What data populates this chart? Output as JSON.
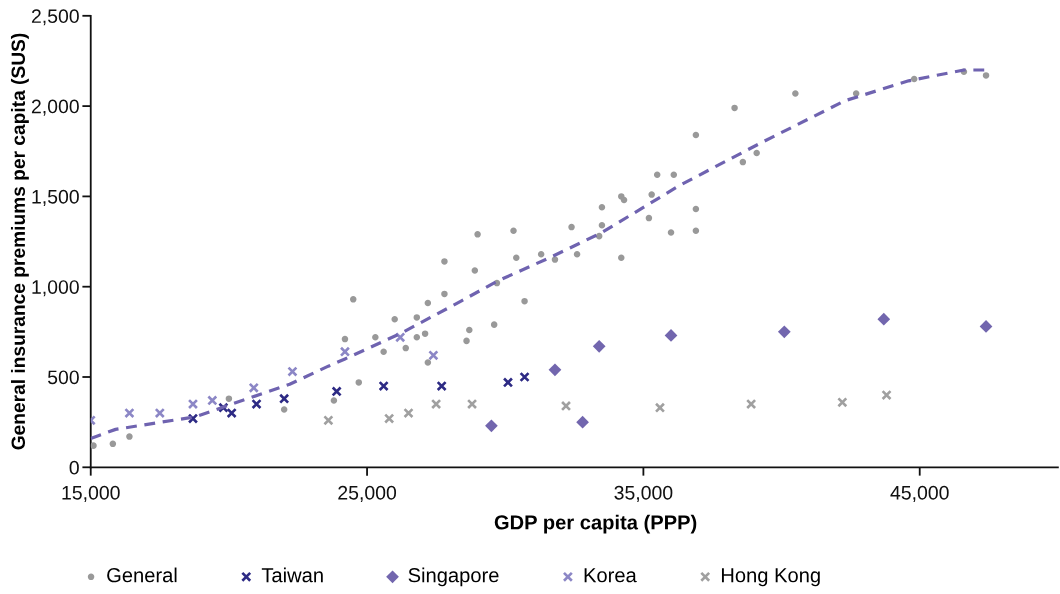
{
  "chart_data": {
    "type": "scatter",
    "xlabel": "GDP per capita (PPP)",
    "ylabel": "General insurance premiums per capita (SUS)",
    "xlim": [
      15000,
      50000
    ],
    "xticks": [
      {
        "value": 15000,
        "label": "15,000"
      },
      {
        "value": 25000,
        "label": "25,000"
      },
      {
        "value": 35000,
        "label": "35,000"
      },
      {
        "value": 45000,
        "label": "45,000"
      }
    ],
    "ylim": [
      0,
      2500
    ],
    "yticks": [
      0,
      {
        "value": 500,
        "label": "500"
      },
      {
        "value": 1000,
        "label": "1,000"
      },
      {
        "value": 1500,
        "label": "1,500"
      },
      {
        "value": 2000,
        "label": "2,000"
      },
      {
        "value": 2500,
        "label": "2,500"
      }
    ],
    "legend": "bottom",
    "series": [
      {
        "name": "General",
        "color": "#999999",
        "marker": "circle",
        "x": [
          15100,
          15800,
          16400,
          20000,
          22000,
          23800,
          24200,
          24500,
          24700,
          25300,
          25600,
          26000,
          26400,
          26800,
          26800,
          27100,
          27200,
          27200,
          27800,
          27800,
          28600,
          28700,
          28900,
          29000,
          29600,
          29700,
          30300,
          30400,
          30700,
          31300,
          31800,
          32400,
          32600,
          33400,
          33500,
          33500,
          34200,
          34200,
          34300,
          35200,
          35300,
          35500,
          36000,
          36100,
          36900,
          36900,
          36900,
          38300,
          38600,
          39100,
          40500,
          42700,
          44800,
          46600,
          47400
        ],
        "values": [
          120,
          130,
          170,
          380,
          320,
          370,
          710,
          930,
          470,
          720,
          640,
          820,
          660,
          720,
          830,
          740,
          580,
          910,
          960,
          1140,
          700,
          760,
          1090,
          1290,
          790,
          1020,
          1310,
          1160,
          920,
          1180,
          1150,
          1330,
          1180,
          1280,
          1440,
          1340,
          1500,
          1160,
          1480,
          1380,
          1510,
          1620,
          1300,
          1620,
          1430,
          1310,
          1840,
          1990,
          1690,
          1740,
          2070,
          2070,
          2150,
          2190,
          2170
        ]
      },
      {
        "name": "Taiwan",
        "color": "#2d2a84",
        "marker": "cross",
        "x": [
          18700,
          19800,
          20100,
          21000,
          22000,
          23900,
          25600,
          27700,
          30100,
          30700
        ],
        "values": [
          270,
          330,
          300,
          350,
          380,
          420,
          450,
          450,
          470,
          500
        ]
      },
      {
        "name": "Singapore",
        "color": "#7266ae",
        "marker": "diamond",
        "x": [
          29500,
          31800,
          32800,
          33400,
          36000,
          40100,
          43700,
          47400
        ],
        "values": [
          230,
          540,
          250,
          670,
          730,
          750,
          820,
          780
        ]
      },
      {
        "name": "Korea",
        "color": "#8c87c6",
        "marker": "cross",
        "x": [
          15000,
          16400,
          17500,
          18700,
          19400,
          20900,
          22300,
          24200,
          26200,
          27400
        ],
        "values": [
          260,
          300,
          300,
          350,
          370,
          440,
          530,
          640,
          720,
          620
        ]
      },
      {
        "name": "Hong Kong",
        "color": "#a0a0a0",
        "marker": "cross",
        "x": [
          23600,
          25800,
          26500,
          27500,
          28800,
          32200,
          35600,
          38900,
          42200,
          43800
        ],
        "values": [
          260,
          270,
          300,
          350,
          350,
          340,
          330,
          350,
          360,
          400
        ]
      },
      {
        "type": "line",
        "color": "#6f63b0",
        "line_style": "dashed",
        "marker": "none",
        "x": [
          15000,
          15900,
          18800,
          20100,
          22200,
          23600,
          24200,
          26200,
          28400,
          29700,
          31600,
          33500,
          36300,
          39300,
          42300,
          44600,
          46600,
          47400
        ],
        "values": [
          160,
          210,
          280,
          350,
          460,
          560,
          600,
          740,
          920,
          1030,
          1160,
          1300,
          1560,
          1800,
          2030,
          2140,
          2200,
          2200
        ]
      }
    ]
  }
}
